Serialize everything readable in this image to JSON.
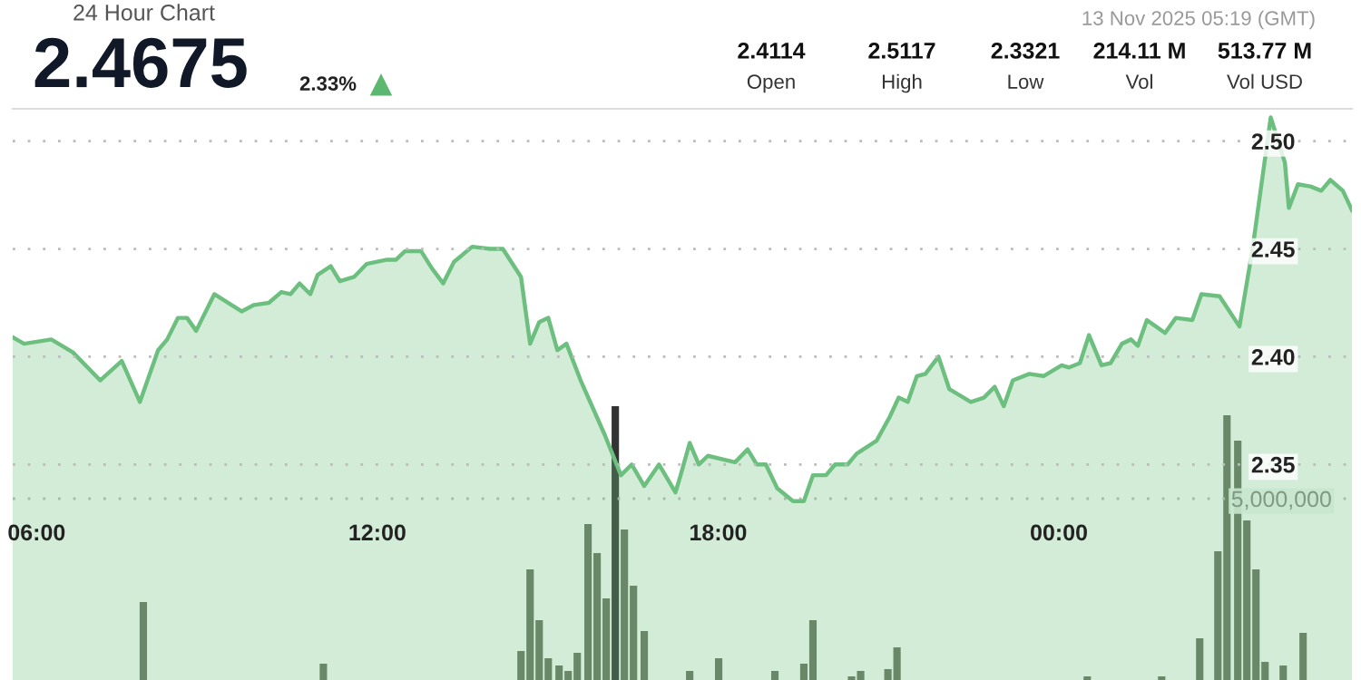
{
  "chart_data": {
    "type": "area",
    "title": "24 Hour Chart",
    "annotations": [
      "2.4675",
      "2.33%",
      "2.4114",
      "Open",
      "2.5117",
      "High",
      "2.3321",
      "Low",
      "214.11 M",
      "Vol",
      "513.77 M",
      "Vol USD",
      "13 Nov 2025 05:19 (GMT)"
    ],
    "xlim": [
      5.58,
      29.16
    ],
    "xticks": [
      {
        "value": 6,
        "label": "06:00"
      },
      {
        "value": 12,
        "label": "12:00"
      },
      {
        "value": 18,
        "label": "18:00"
      },
      {
        "value": 24,
        "label": "00:00"
      }
    ],
    "ylim": [
      2.25,
      2.515
    ],
    "yticks": [
      2.35,
      {
        "value": 2.4,
        "label": "2.40"
      },
      2.45,
      {
        "value": 2.5,
        "label": "2.50"
      }
    ],
    "y2lim": [
      0,
      15750000
    ],
    "y2ticks": [
      {
        "value": 5000000,
        "label": "5,000,000"
      }
    ],
    "grid": "y",
    "legend": false,
    "series": [
      {
        "color": "#6cbf7e",
        "x": [
          5.58,
          5.78,
          6.26,
          6.64,
          7.12,
          7.5,
          7.82,
          8.14,
          8.3,
          8.49,
          8.65,
          8.81,
          9.13,
          9.61,
          9.83,
          10.09,
          10.31,
          10.47,
          10.63,
          10.82,
          10.95,
          11.18,
          11.34,
          11.59,
          11.81,
          12.17,
          12.33,
          12.49,
          12.77,
          12.96,
          13.16,
          13.35,
          13.67,
          13.99,
          14.21,
          14.53,
          14.69,
          14.85,
          15.01,
          15.17,
          15.33,
          15.58,
          16.0,
          16.29,
          16.48,
          16.7,
          16.96,
          17.25,
          17.34,
          17.5,
          17.66,
          17.82,
          18.3,
          18.52,
          18.68,
          18.84,
          19.04,
          19.32,
          19.51,
          19.67,
          19.9,
          20.06,
          20.28,
          20.44,
          20.79,
          21.02,
          21.18,
          21.34,
          21.5,
          21.65,
          21.88,
          22.07,
          22.45,
          22.68,
          22.87,
          23.03,
          23.19,
          23.48,
          23.73,
          24.05,
          24.18,
          24.37,
          24.53,
          24.75,
          24.91,
          25.11,
          25.27,
          25.39,
          25.55,
          25.87,
          26.06,
          26.35,
          26.51,
          26.83,
          27.18,
          27.41,
          27.73,
          27.98,
          28.05,
          28.21,
          28.43,
          28.62,
          28.78,
          29.0,
          29.16
        ],
        "values": [
          2.409,
          2.406,
          2.408,
          2.402,
          2.389,
          2.398,
          2.379,
          2.403,
          2.408,
          2.418,
          2.418,
          2.412,
          2.429,
          2.421,
          2.424,
          2.425,
          2.43,
          2.429,
          2.434,
          2.429,
          2.438,
          2.442,
          2.435,
          2.437,
          2.443,
          2.445,
          2.445,
          2.449,
          2.449,
          2.441,
          2.434,
          2.444,
          2.451,
          2.45,
          2.45,
          2.437,
          2.406,
          2.416,
          2.418,
          2.403,
          2.406,
          2.389,
          2.364,
          2.345,
          2.35,
          2.34,
          2.35,
          2.337,
          2.345,
          2.36,
          2.35,
          2.354,
          2.351,
          2.357,
          2.35,
          2.35,
          2.339,
          2.333,
          2.333,
          2.345,
          2.345,
          2.35,
          2.35,
          2.355,
          2.361,
          2.372,
          2.381,
          2.379,
          2.391,
          2.392,
          2.4,
          2.385,
          2.379,
          2.381,
          2.386,
          2.377,
          2.389,
          2.392,
          2.391,
          2.396,
          2.395,
          2.397,
          2.41,
          2.396,
          2.397,
          2.406,
          2.408,
          2.405,
          2.417,
          2.411,
          2.418,
          2.417,
          2.429,
          2.428,
          2.414,
          2.45,
          2.511,
          2.49,
          2.469,
          2.48,
          2.479,
          2.477,
          2.482,
          2.477,
          2.468
        ]
      },
      {
        "type": "bar",
        "axis": "y2",
        "color": "#66705f",
        "x": [
          7.88,
          11.05,
          14.53,
          14.69,
          14.85,
          15.01,
          15.2,
          15.36,
          15.52,
          15.71,
          15.87,
          16.03,
          16.19,
          16.35,
          16.51,
          16.7,
          17.5,
          18.01,
          19.0,
          19.51,
          19.67,
          20.35,
          20.51,
          20.99,
          21.15,
          24.5,
          25.81,
          26.48,
          26.8,
          26.96,
          27.15,
          27.31,
          27.47,
          27.63,
          27.95,
          28.3
        ],
        "colors": [
          "#66705f",
          "#66705f",
          "#66705f",
          "#66705f",
          "#66705f",
          "#66705f",
          "#66705f",
          "#66705f",
          "#66705f",
          "#66705f",
          "#66705f",
          "#66705f",
          "#333333",
          "#66705f",
          "#66705f",
          "#66705f",
          "#66705f",
          "#66705f",
          "#66705f",
          "#66705f",
          "#66705f",
          "#66705f",
          "#66705f",
          "#66705f",
          "#66705f",
          "#66705f",
          "#66705f",
          "#66705f",
          "#66705f",
          "#66705f",
          "#66705f",
          "#66705f",
          "#66705f",
          "#66705f",
          "#66705f",
          "#66705f"
        ],
        "values": [
          2150000,
          450000,
          800000,
          3050000,
          1650000,
          600000,
          400000,
          250000,
          750000,
          4300000,
          3500000,
          2250000,
          7550000,
          4150000,
          2600000,
          1350000,
          250000,
          600000,
          250000,
          450000,
          1650000,
          100000,
          250000,
          300000,
          900000,
          100000,
          100000,
          1150000,
          3550000,
          7300000,
          6600000,
          4400000,
          3050000,
          500000,
          400000,
          1300000
        ]
      }
    ]
  }
}
